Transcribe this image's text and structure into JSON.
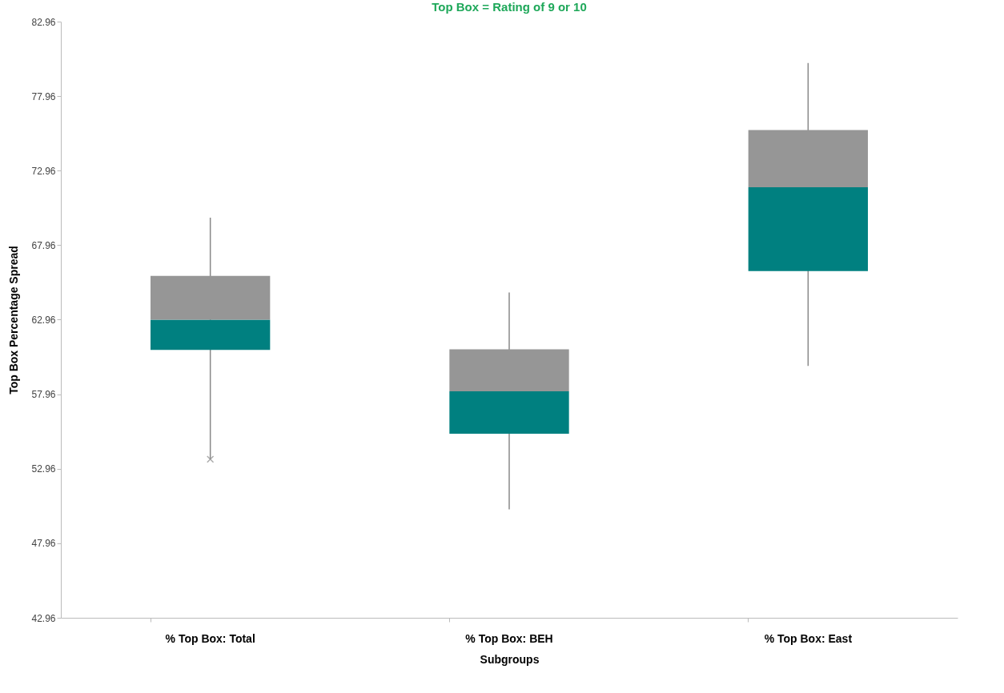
{
  "chart_data": {
    "type": "box",
    "subtitle": "Top Box = Rating of 9 or 10",
    "xlabel": "Subgroups",
    "ylabel": "Top Box Percentage Spread",
    "categories": [
      "% Top Box: Total",
      "% Top Box: BEH",
      "% Top Box: East"
    ],
    "series": [
      {
        "color": "#008080",
        "boxes": [
          {
            "low": 53.6,
            "q1": 60.93,
            "median": 62.96,
            "q3": 65.9,
            "high": 69.8,
            "outliers": [
              53.6
            ]
          },
          {
            "low": 50.23,
            "q1": 55.31,
            "median": 58.15,
            "q3": 60.98,
            "high": 64.78
          },
          {
            "low": 59.86,
            "q1": 66.22,
            "median": 71.84,
            "q3": 75.69,
            "high": 80.18
          }
        ]
      }
    ],
    "ylim": [
      42.96,
      82.96
    ],
    "yticks": [
      42.96,
      47.96,
      52.96,
      57.96,
      62.96,
      67.96,
      72.96,
      77.96,
      82.96
    ],
    "grid": false
  }
}
